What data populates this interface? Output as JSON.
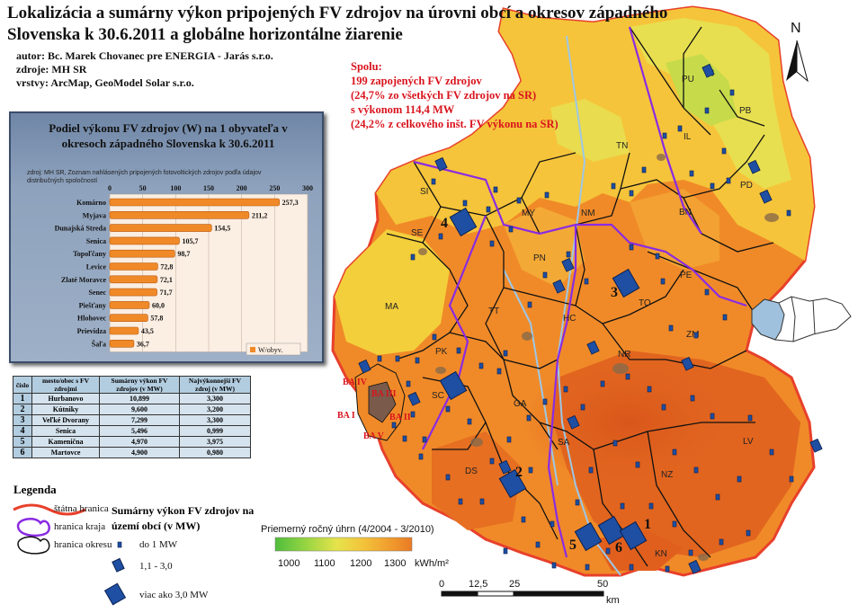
{
  "title": "Lokalizácia a sumárny výkon pripojených FV zdrojov na úrovni obcí a okresov západného Slovenska k 30.6.2011 a globálne horizontálne žiarenie",
  "meta": {
    "author": "autor: Bc. Marek Chovanec pre ENERGIA - Jarás s.r.o.",
    "sources": "zdroje: MH SR",
    "layers": "vrstvy: ArcMap, GeoModel Solar s.r.o."
  },
  "summary": {
    "line1": "Spolu:",
    "line2": "199 zapojených FV zdrojov",
    "line3": "(24,7% zo všetkých FV zdrojov na SR)",
    "line4": "s výkonom 114,4 MW",
    "line5": "(24,2% z celkového inšt. FV výkonu na SR)"
  },
  "colors": {
    "irr_1000": "#5ec94a",
    "irr_1100": "#c6e24b",
    "irr_1200": "#f3d23c",
    "irr_1300": "#f08a28",
    "irr_high": "#e0621f",
    "border_state": "#e8402b",
    "border_region": "#8a2be2",
    "border_district": "#111111",
    "site": "#1e4fa3",
    "label_red": "#d9141e"
  },
  "chart": {
    "title": "Podiel výkonu FV zdrojov (W) na 1 obyvateľa v okresoch západného Slovenska k 30.6.2011",
    "note": "zdroj: MH SR, Zoznam nahlásených pripojených fotovoltických zdrojov podľa údajov distribučných spoločností",
    "legend": "W/obyv."
  },
  "chart_data": {
    "type": "bar",
    "orientation": "horizontal",
    "categories": [
      "Komárno",
      "Myjava",
      "Dunajská Streda",
      "Senica",
      "Topoľčany",
      "Levice",
      "Zlaté Moravce",
      "Senec",
      "Piešťany",
      "Hlohovec",
      "Prievidza",
      "Šaľa"
    ],
    "values": [
      257.3,
      211.2,
      154.5,
      105.7,
      98.7,
      72.8,
      72.1,
      71.7,
      60.0,
      57.8,
      43.5,
      36.7
    ],
    "value_labels": [
      "257,3",
      "211,2",
      "154,5",
      "105,7",
      "98,7",
      "72,8",
      "72,1",
      "71,7",
      "60,0",
      "57,8",
      "43,5",
      "36,7"
    ],
    "xlim": [
      0,
      300
    ],
    "ticks": [
      "0",
      "50",
      "100",
      "150",
      "200",
      "250",
      "300"
    ],
    "series_name": "W/obyv.",
    "legend_position": "bottom-right"
  },
  "table": {
    "headers": [
      "číslo",
      "mesto/obec s FV zdrojmi",
      "Sumárny výkon FV zdrojov (v MW)",
      "Najvýkonnejší FV zdroj (v MW)"
    ],
    "rows": [
      [
        "1",
        "Hurbanovo",
        "10,899",
        "3,300"
      ],
      [
        "2",
        "Kútniky",
        "9,600",
        "3,200"
      ],
      [
        "3",
        "Veľké Dvorany",
        "7,299",
        "3,300"
      ],
      [
        "4",
        "Senica",
        "5,496",
        "0,999"
      ],
      [
        "5",
        "Kamenična",
        "4,970",
        "3,975"
      ],
      [
        "6",
        "Martovce",
        "4,900",
        "0,980"
      ]
    ]
  },
  "districts": [
    "SI",
    "MY",
    "NM",
    "TN",
    "PU",
    "PB",
    "IL",
    "PD",
    "SE",
    "BN",
    "PE",
    "MA",
    "PN",
    "TO",
    "TT",
    "HC",
    "ZM",
    "PK",
    "NR",
    "GA",
    "SC",
    "SA",
    "LV",
    "DS",
    "NZ",
    "KN",
    "BA IV",
    "BA III",
    "BA I",
    "BA II",
    "BA V"
  ],
  "site_numbers": [
    "1",
    "2",
    "3",
    "4",
    "5",
    "6"
  ],
  "north": "N",
  "legend": {
    "title": "Legenda",
    "state": "štátna hranica",
    "region": "hranica kraja",
    "district": "hranica okresu",
    "power_title": "Sumárny výkon FV zdrojov na území obcí (v MW)",
    "small": "do 1 MW",
    "medium": "1,1 - 3,0",
    "large": "viac ako 3,0 MW",
    "irr_title": "Priemerný ročný úhrn (4/2004 - 3/2010)",
    "irr_labels": [
      "1000",
      "1100",
      "1200",
      "1300"
    ],
    "irr_unit": "kWh/m²",
    "scale_labels": [
      "0",
      "12,5",
      "25",
      "50"
    ],
    "scale_unit": "km"
  }
}
